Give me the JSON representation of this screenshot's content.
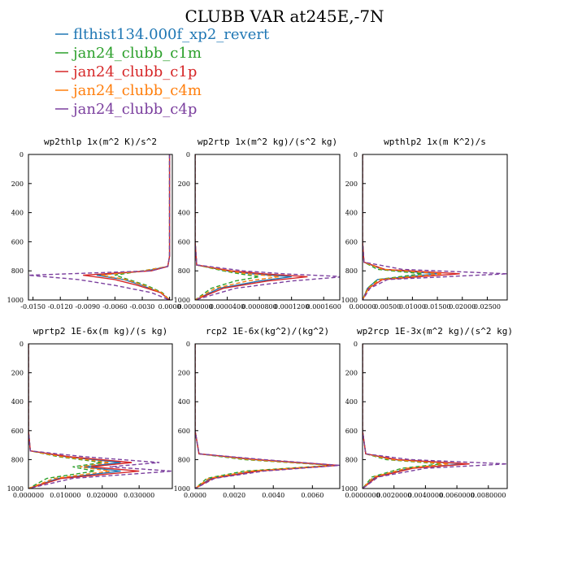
{
  "title": "CLUBB VAR at245E,-7N",
  "legend": [
    {
      "label": "flthist134.000f_xp2_revert",
      "color": "#1f77b4",
      "dash": "solid"
    },
    {
      "label": "jan24_clubb_c1m",
      "color": "#2ca02c",
      "dash": "dashed"
    },
    {
      "label": "jan24_clubb_c1p",
      "color": "#d62728",
      "dash": "solid"
    },
    {
      "label": "jan24_clubb_c4m",
      "color": "#ff7f0e",
      "dash": "dashed"
    },
    {
      "label": "jan24_clubb_c4p",
      "color": "#7b3f9e",
      "dash": "dashed"
    }
  ],
  "chart_data": [
    {
      "type": "line",
      "title": "wp2thlp  1x(m^2 K)/s^2",
      "xlim": [
        -0.0155,
        0.0003
      ],
      "ylim": [
        1000,
        0
      ],
      "xticks": [
        -0.015,
        -0.012,
        -0.009,
        -0.006,
        -0.003,
        0.0
      ],
      "xticklabels": [
        "-0.0150",
        "-0.0120",
        "-0.0090",
        "-0.0060",
        "-0.0030",
        "0.0000"
      ],
      "yticks": [
        0,
        200,
        400,
        600,
        800,
        1000
      ],
      "yticklabels": [
        "0",
        "200",
        "400",
        "600",
        "800",
        "1000"
      ],
      "series": [
        {
          "name": "flthist134.000f_xp2_revert",
          "x": [
            0.0,
            0.0,
            0.0,
            0.0,
            -0.0002,
            -0.0025,
            -0.008,
            -0.005,
            -0.003,
            -0.001,
            0.0
          ],
          "y": [
            0,
            200,
            500,
            700,
            770,
            800,
            830,
            860,
            900,
            950,
            1000
          ]
        },
        {
          "name": "jan24_clubb_c1m",
          "x": [
            0.0,
            0.0,
            0.0,
            0.0,
            -0.0002,
            -0.003,
            -0.006,
            -0.0045,
            -0.0025,
            -0.0008,
            0.0
          ],
          "y": [
            0,
            200,
            500,
            700,
            770,
            800,
            830,
            860,
            900,
            950,
            1000
          ]
        },
        {
          "name": "jan24_clubb_c1p",
          "x": [
            0.0,
            0.0,
            0.0,
            0.0,
            -0.0002,
            -0.002,
            -0.0095,
            -0.006,
            -0.0035,
            -0.001,
            0.0
          ],
          "y": [
            0,
            200,
            500,
            700,
            770,
            800,
            830,
            860,
            900,
            950,
            1000
          ]
        },
        {
          "name": "jan24_clubb_c4m",
          "x": [
            0.0,
            0.0,
            0.0,
            0.0,
            -0.0002,
            -0.0028,
            -0.0075,
            -0.0048,
            -0.0028,
            -0.0009,
            0.0
          ],
          "y": [
            0,
            200,
            500,
            700,
            770,
            800,
            830,
            860,
            900,
            950,
            1000
          ]
        },
        {
          "name": "jan24_clubb_c4p",
          "x": [
            0.0,
            0.0,
            0.0,
            0.0,
            -0.0002,
            -0.002,
            -0.0155,
            -0.01,
            -0.006,
            -0.002,
            0.0
          ],
          "y": [
            0,
            200,
            500,
            700,
            770,
            800,
            830,
            860,
            900,
            950,
            1000
          ]
        }
      ]
    },
    {
      "type": "line",
      "title": "wp2rtp  1x(m^2 kg)/(s^2 kg)",
      "xlim": [
        0.0,
        0.00018
      ],
      "ylim": [
        1000,
        0
      ],
      "xticks": [
        0.0,
        4e-05,
        8e-05,
        0.00012,
        0.00016
      ],
      "xticklabels": [
        "0.0000000",
        "0.0000400",
        "0.0000800",
        "0.0001200",
        "0.0001600"
      ],
      "yticks": [
        0,
        200,
        400,
        600,
        800,
        1000
      ],
      "yticklabels": [
        "0",
        "200",
        "400",
        "600",
        "800",
        "1000"
      ],
      "series": [
        {
          "name": "flthist134.000f_xp2_revert",
          "x": [
            0,
            0,
            0,
            2e-06,
            4e-05,
            7e-05,
            0.00012,
            8e-05,
            3e-05,
            0.0
          ],
          "y": [
            0,
            200,
            600,
            760,
            800,
            820,
            840,
            870,
            920,
            1000
          ]
        },
        {
          "name": "jan24_clubb_c1m",
          "x": [
            0,
            0,
            0,
            2e-06,
            3.5e-05,
            5.5e-05,
            8e-05,
            5e-05,
            2e-05,
            0.0
          ],
          "y": [
            0,
            200,
            600,
            760,
            800,
            820,
            840,
            870,
            920,
            1000
          ]
        },
        {
          "name": "jan24_clubb_c1p",
          "x": [
            0,
            0,
            0,
            2e-06,
            4.5e-05,
            8.5e-05,
            0.00014,
            9e-05,
            3.5e-05,
            0.0
          ],
          "y": [
            0,
            200,
            600,
            760,
            800,
            820,
            840,
            870,
            920,
            1000
          ]
        },
        {
          "name": "jan24_clubb_c4m",
          "x": [
            0,
            0,
            0,
            2e-06,
            4e-05,
            6.5e-05,
            0.000105,
            6.5e-05,
            2.5e-05,
            0.0
          ],
          "y": [
            0,
            200,
            600,
            760,
            800,
            820,
            840,
            870,
            920,
            1000
          ]
        },
        {
          "name": "jan24_clubb_c4p",
          "x": [
            0,
            0,
            0,
            2e-06,
            6e-05,
            0.00011,
            0.000185,
            0.00012,
            5e-05,
            0.0
          ],
          "y": [
            0,
            200,
            600,
            760,
            800,
            820,
            840,
            870,
            920,
            1000
          ]
        }
      ]
    },
    {
      "type": "line",
      "title": "wpthlp2  1x(m K^2)/s",
      "xlim": [
        0.0,
        0.029
      ],
      "ylim": [
        1000,
        0
      ],
      "xticks": [
        0.0,
        0.005,
        0.01,
        0.015,
        0.02,
        0.025
      ],
      "xticklabels": [
        "0.00000",
        "0.00500",
        "0.01000",
        "0.01500",
        "0.02000",
        "0.02500"
      ],
      "yticks": [
        0,
        200,
        400,
        600,
        800,
        1000
      ],
      "yticklabels": [
        "0",
        "200",
        "400",
        "600",
        "800",
        "1000"
      ],
      "series": [
        {
          "name": "flthist134.000f_xp2_revert",
          "x": [
            0,
            0,
            0,
            0.0003,
            0.004,
            0.015,
            0.003,
            0.001,
            0.0
          ],
          "y": [
            0,
            200,
            600,
            740,
            790,
            820,
            860,
            920,
            1000
          ]
        },
        {
          "name": "jan24_clubb_c1m",
          "x": [
            0,
            0,
            0,
            0.0003,
            0.003,
            0.012,
            0.003,
            0.001,
            0.0
          ],
          "y": [
            0,
            200,
            600,
            740,
            790,
            820,
            860,
            920,
            1000
          ]
        },
        {
          "name": "jan24_clubb_c1p",
          "x": [
            0,
            0,
            0,
            0.0003,
            0.0045,
            0.0195,
            0.004,
            0.0012,
            0.0
          ],
          "y": [
            0,
            200,
            600,
            740,
            790,
            820,
            860,
            920,
            1000
          ]
        },
        {
          "name": "jan24_clubb_c4m",
          "x": [
            0,
            0,
            0,
            0.0003,
            0.004,
            0.016,
            0.0035,
            0.0011,
            0.0
          ],
          "y": [
            0,
            200,
            600,
            740,
            790,
            820,
            860,
            920,
            1000
          ]
        },
        {
          "name": "jan24_clubb_c4p",
          "x": [
            0,
            0,
            0,
            0.0003,
            0.008,
            0.029,
            0.005,
            0.0015,
            0.0
          ],
          "y": [
            0,
            200,
            600,
            740,
            790,
            820,
            860,
            920,
            1000
          ]
        }
      ]
    },
    {
      "type": "line",
      "title": "wprtp2  1E-6x(m kg)/(s kg)",
      "xlim": [
        0.0,
        0.039
      ],
      "ylim": [
        1000,
        0
      ],
      "xticks": [
        0.0,
        0.01,
        0.02,
        0.03
      ],
      "xticklabels": [
        "0.000000",
        "0.010000",
        "0.020000",
        "0.030000"
      ],
      "yticks": [
        0,
        200,
        400,
        600,
        800,
        1000
      ],
      "yticklabels": [
        "0",
        "200",
        "400",
        "600",
        "800",
        "1000"
      ],
      "series": [
        {
          "name": "flthist134.000f_xp2_revert",
          "x": [
            0,
            0,
            0,
            0.0005,
            0.01,
            0.025,
            0.015,
            0.025,
            0.008,
            0.0
          ],
          "y": [
            0,
            200,
            600,
            740,
            780,
            820,
            850,
            880,
            930,
            1000
          ]
        },
        {
          "name": "jan24_clubb_c1m",
          "x": [
            0,
            0,
            0,
            0.0005,
            0.008,
            0.02,
            0.012,
            0.018,
            0.005,
            0.0
          ],
          "y": [
            0,
            200,
            600,
            740,
            780,
            820,
            850,
            880,
            930,
            1000
          ]
        },
        {
          "name": "jan24_clubb_c1p",
          "x": [
            0,
            0,
            0,
            0.0005,
            0.011,
            0.028,
            0.017,
            0.03,
            0.009,
            0.0
          ],
          "y": [
            0,
            200,
            600,
            740,
            780,
            820,
            850,
            880,
            930,
            1000
          ]
        },
        {
          "name": "jan24_clubb_c4m",
          "x": [
            0,
            0,
            0,
            0.0005,
            0.009,
            0.022,
            0.014,
            0.022,
            0.007,
            0.0
          ],
          "y": [
            0,
            200,
            600,
            740,
            780,
            820,
            850,
            880,
            930,
            1000
          ]
        },
        {
          "name": "jan24_clubb_c4p",
          "x": [
            0,
            0,
            0,
            0.0005,
            0.015,
            0.0355,
            0.022,
            0.039,
            0.012,
            0.0
          ],
          "y": [
            0,
            200,
            600,
            740,
            780,
            820,
            850,
            880,
            930,
            1000
          ]
        }
      ]
    },
    {
      "type": "line",
      "title": "rcp2  1E-6x(kg^2)/(kg^2)",
      "xlim": [
        0.0,
        0.0074
      ],
      "ylim": [
        1000,
        0
      ],
      "xticks": [
        0.0,
        0.002,
        0.004,
        0.006
      ],
      "xticklabels": [
        "0.0000",
        "0.0020",
        "0.0040",
        "0.0060"
      ],
      "yticks": [
        0,
        200,
        400,
        600,
        800,
        1000
      ],
      "yticklabels": [
        "0",
        "200",
        "400",
        "600",
        "800",
        "1000"
      ],
      "series": [
        {
          "name": "flthist134.000f_xp2_revert",
          "x": [
            0,
            0,
            0,
            0.0002,
            0.003,
            0.0072,
            0.003,
            0.0008,
            0.0
          ],
          "y": [
            0,
            200,
            600,
            760,
            800,
            840,
            880,
            930,
            1000
          ]
        },
        {
          "name": "jan24_clubb_c1m",
          "x": [
            0,
            0,
            0,
            0.0002,
            0.0025,
            0.007,
            0.0025,
            0.0006,
            0.0
          ],
          "y": [
            0,
            200,
            600,
            760,
            800,
            840,
            880,
            930,
            1000
          ]
        },
        {
          "name": "jan24_clubb_c1p",
          "x": [
            0,
            0,
            0,
            0.0002,
            0.0032,
            0.0073,
            0.0032,
            0.0009,
            0.0
          ],
          "y": [
            0,
            200,
            600,
            760,
            800,
            840,
            880,
            930,
            1000
          ]
        },
        {
          "name": "jan24_clubb_c4m",
          "x": [
            0,
            0,
            0,
            0.0002,
            0.0028,
            0.0071,
            0.0028,
            0.0007,
            0.0
          ],
          "y": [
            0,
            200,
            600,
            760,
            800,
            840,
            880,
            930,
            1000
          ]
        },
        {
          "name": "jan24_clubb_c4p",
          "x": [
            0,
            0,
            0,
            0.0002,
            0.0035,
            0.0074,
            0.0035,
            0.001,
            0.0
          ],
          "y": [
            0,
            200,
            600,
            760,
            800,
            840,
            880,
            930,
            1000
          ]
        }
      ]
    },
    {
      "type": "line",
      "title": "wp2rcp  1E-3x(m^2 kg)/(s^2 kg)",
      "xlim": [
        0.0,
        0.0092
      ],
      "ylim": [
        1000,
        0
      ],
      "xticks": [
        0.0,
        0.002,
        0.004,
        0.006,
        0.008
      ],
      "xticklabels": [
        "0.0000000",
        "0.0020000",
        "0.0040000",
        "0.0060000",
        "0.0080000"
      ],
      "yticks": [
        0,
        200,
        400,
        600,
        800,
        1000
      ],
      "yticklabels": [
        "0",
        "200",
        "400",
        "600",
        "800",
        "1000"
      ],
      "series": [
        {
          "name": "flthist134.000f_xp2_revert",
          "x": [
            0,
            0,
            0,
            0.0002,
            0.002,
            0.0065,
            0.003,
            0.0008,
            0.0
          ],
          "y": [
            0,
            200,
            600,
            760,
            800,
            830,
            860,
            920,
            1000
          ]
        },
        {
          "name": "jan24_clubb_c1m",
          "x": [
            0,
            0,
            0,
            0.0002,
            0.0015,
            0.005,
            0.0025,
            0.0006,
            0.0
          ],
          "y": [
            0,
            200,
            600,
            760,
            800,
            830,
            860,
            920,
            1000
          ]
        },
        {
          "name": "jan24_clubb_c1p",
          "x": [
            0,
            0,
            0,
            0.0002,
            0.0022,
            0.0068,
            0.0032,
            0.0009,
            0.0
          ],
          "y": [
            0,
            200,
            600,
            760,
            800,
            830,
            860,
            920,
            1000
          ]
        },
        {
          "name": "jan24_clubb_c4m",
          "x": [
            0,
            0,
            0,
            0.0002,
            0.0018,
            0.0055,
            0.0028,
            0.0007,
            0.0
          ],
          "y": [
            0,
            200,
            600,
            760,
            800,
            830,
            860,
            920,
            1000
          ]
        },
        {
          "name": "jan24_clubb_c4p",
          "x": [
            0,
            0,
            0,
            0.0002,
            0.003,
            0.0092,
            0.004,
            0.001,
            0.0
          ],
          "y": [
            0,
            200,
            600,
            760,
            800,
            830,
            860,
            920,
            1000
          ]
        }
      ]
    }
  ]
}
